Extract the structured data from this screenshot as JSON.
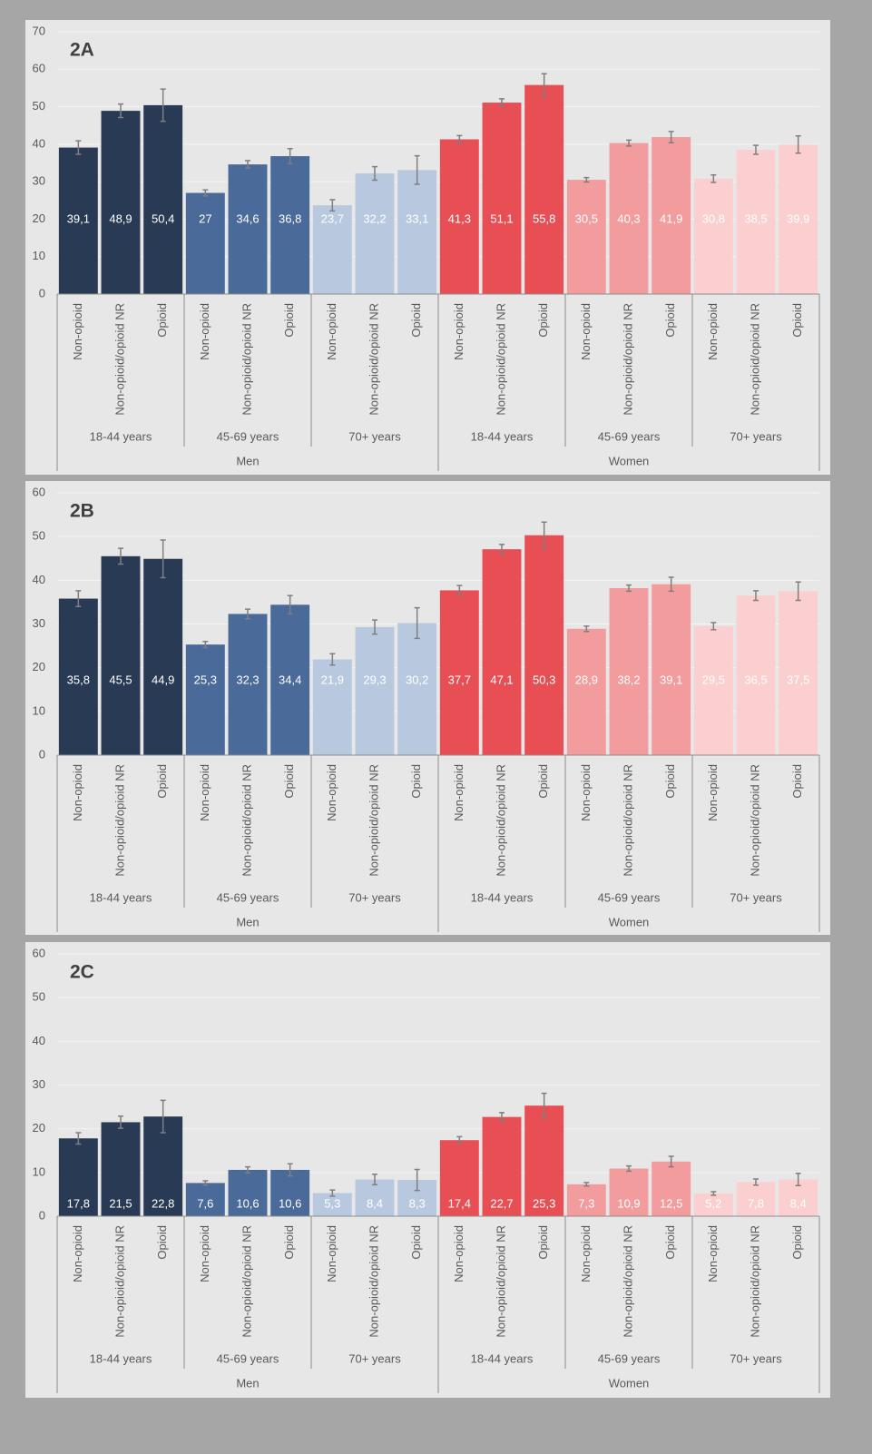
{
  "chart_data": [
    {
      "type": "bar",
      "title": "2A",
      "categories": [
        "Non-opioid",
        "Non-opioid/opioid NR",
        "Opioid",
        "Non-opioid",
        "Non-opioid/opioid NR",
        "Opioid",
        "Non-opioid",
        "Non-opioid/opioid NR",
        "Opioid",
        "Non-opioid",
        "Non-opioid/opioid NR",
        "Opioid",
        "Non-opioid",
        "Non-opioid/opioid NR",
        "Opioid",
        "Non-opioid",
        "Non-opioid/opioid NR",
        "Opioid"
      ],
      "age_groups": [
        "18-44 years",
        "45-69 years",
        "70+ years",
        "18-44 years",
        "45-69 years",
        "70+ years"
      ],
      "sex_groups": [
        "Men",
        "Women"
      ],
      "colors": [
        "#293a55",
        "#4a6a99",
        "#b8c9df",
        "#e84f55",
        "#f39c9e",
        "#fbcfcf"
      ],
      "values": [
        39.1,
        48.9,
        50.4,
        27,
        34.6,
        36.8,
        23.7,
        32.2,
        33.1,
        41.3,
        51.1,
        55.8,
        30.5,
        40.3,
        41.9,
        30.8,
        38.5,
        39.9
      ],
      "value_labels": [
        "39,1",
        "48,9",
        "50,4",
        "27",
        "34,6",
        "36,8",
        "23,7",
        "32,2",
        "33,1",
        "41,3",
        "51,1",
        "55,8",
        "30,5",
        "40,3",
        "41,9",
        "30,8",
        "38,5",
        "39,9"
      ],
      "errors": [
        1.8,
        1.8,
        4.3,
        0.8,
        1,
        2,
        1.5,
        1.8,
        3.8,
        1,
        1,
        3,
        0.6,
        0.8,
        1.5,
        1,
        1.2,
        2.3
      ],
      "ylim": [
        0,
        70
      ],
      "yticks": [
        0,
        10,
        20,
        30,
        40,
        50,
        60,
        70
      ],
      "grid": true
    },
    {
      "type": "bar",
      "title": "2B",
      "categories": [
        "Non-opioid",
        "Non-opioid/opioid NR",
        "Opioid",
        "Non-opioid",
        "Non-opioid/opioid NR",
        "Opioid",
        "Non-opioid",
        "Non-opioid/opioid NR",
        "Opioid",
        "Non-opioid",
        "Non-opioid/opioid NR",
        "Opioid",
        "Non-opioid",
        "Non-opioid/opioid NR",
        "Opioid",
        "Non-opioid",
        "Non-opioid/opioid NR",
        "Opioid"
      ],
      "age_groups": [
        "18-44 years",
        "45-69 years",
        "70+ years",
        "18-44 years",
        "45-69 years",
        "70+ years"
      ],
      "sex_groups": [
        "Men",
        "Women"
      ],
      "colors": [
        "#293a55",
        "#4a6a99",
        "#b8c9df",
        "#e84f55",
        "#f39c9e",
        "#fbcfcf"
      ],
      "values": [
        35.8,
        45.5,
        44.9,
        25.3,
        32.3,
        34.4,
        21.9,
        29.3,
        30.2,
        37.7,
        47.1,
        50.3,
        28.9,
        38.2,
        39.1,
        29.5,
        36.5,
        37.5
      ],
      "value_labels": [
        "35,8",
        "45,5",
        "44,9",
        "25,3",
        "32,3",
        "34,4",
        "21,9",
        "29,3",
        "30,2",
        "37,7",
        "47,1",
        "50,3",
        "28,9",
        "38,2",
        "39,1",
        "29,5",
        "36,5",
        "37,5"
      ],
      "errors": [
        1.8,
        1.8,
        4.3,
        0.7,
        1.1,
        2.1,
        1.3,
        1.6,
        3.5,
        1.1,
        1.1,
        3,
        0.6,
        0.7,
        1.6,
        0.8,
        1.1,
        2.1
      ],
      "ylim": [
        0,
        60
      ],
      "yticks": [
        0,
        10,
        20,
        30,
        40,
        50,
        60
      ],
      "grid": true
    },
    {
      "type": "bar",
      "title": "2C",
      "categories": [
        "Non-opioid",
        "Non-opioid/opioid NR",
        "Opioid",
        "Non-opioid",
        "Non-opioid/opioid NR",
        "Opioid",
        "Non-opioid",
        "Non-opioid/opioid NR",
        "Opioid",
        "Non-opioid",
        "Non-opioid/opioid NR",
        "Opioid",
        "Non-opioid",
        "Non-opioid/opioid NR",
        "Opioid",
        "Non-opioid",
        "Non-opioid/opioid NR",
        "Opioid"
      ],
      "age_groups": [
        "18-44 years",
        "45-69 years",
        "70+ years",
        "18-44 years",
        "45-69 years",
        "70+ years"
      ],
      "sex_groups": [
        "Men",
        "Women"
      ],
      "colors": [
        "#293a55",
        "#4a6a99",
        "#b8c9df",
        "#e84f55",
        "#f39c9e",
        "#fbcfcf"
      ],
      "values": [
        17.8,
        21.5,
        22.8,
        7.6,
        10.6,
        10.6,
        5.3,
        8.4,
        8.3,
        17.4,
        22.7,
        25.3,
        7.3,
        10.9,
        12.5,
        5.2,
        7.8,
        8.4
      ],
      "value_labels": [
        "17,8",
        "21,5",
        "22,8",
        "7,6",
        "10,6",
        "10,6",
        "5,3",
        "8,4",
        "8,3",
        "17,4",
        "22,7",
        "25,3",
        "7,3",
        "10,9",
        "12,5",
        "5,2",
        "7,8",
        "8,4"
      ],
      "errors": [
        1.3,
        1.4,
        3.7,
        0.5,
        0.7,
        1.4,
        0.7,
        1.2,
        2.4,
        0.8,
        1,
        2.8,
        0.4,
        0.6,
        1.2,
        0.4,
        0.7,
        1.4
      ],
      "ylim": [
        0,
        60
      ],
      "yticks": [
        0,
        10,
        20,
        30,
        40,
        50,
        60
      ],
      "grid": true
    }
  ]
}
